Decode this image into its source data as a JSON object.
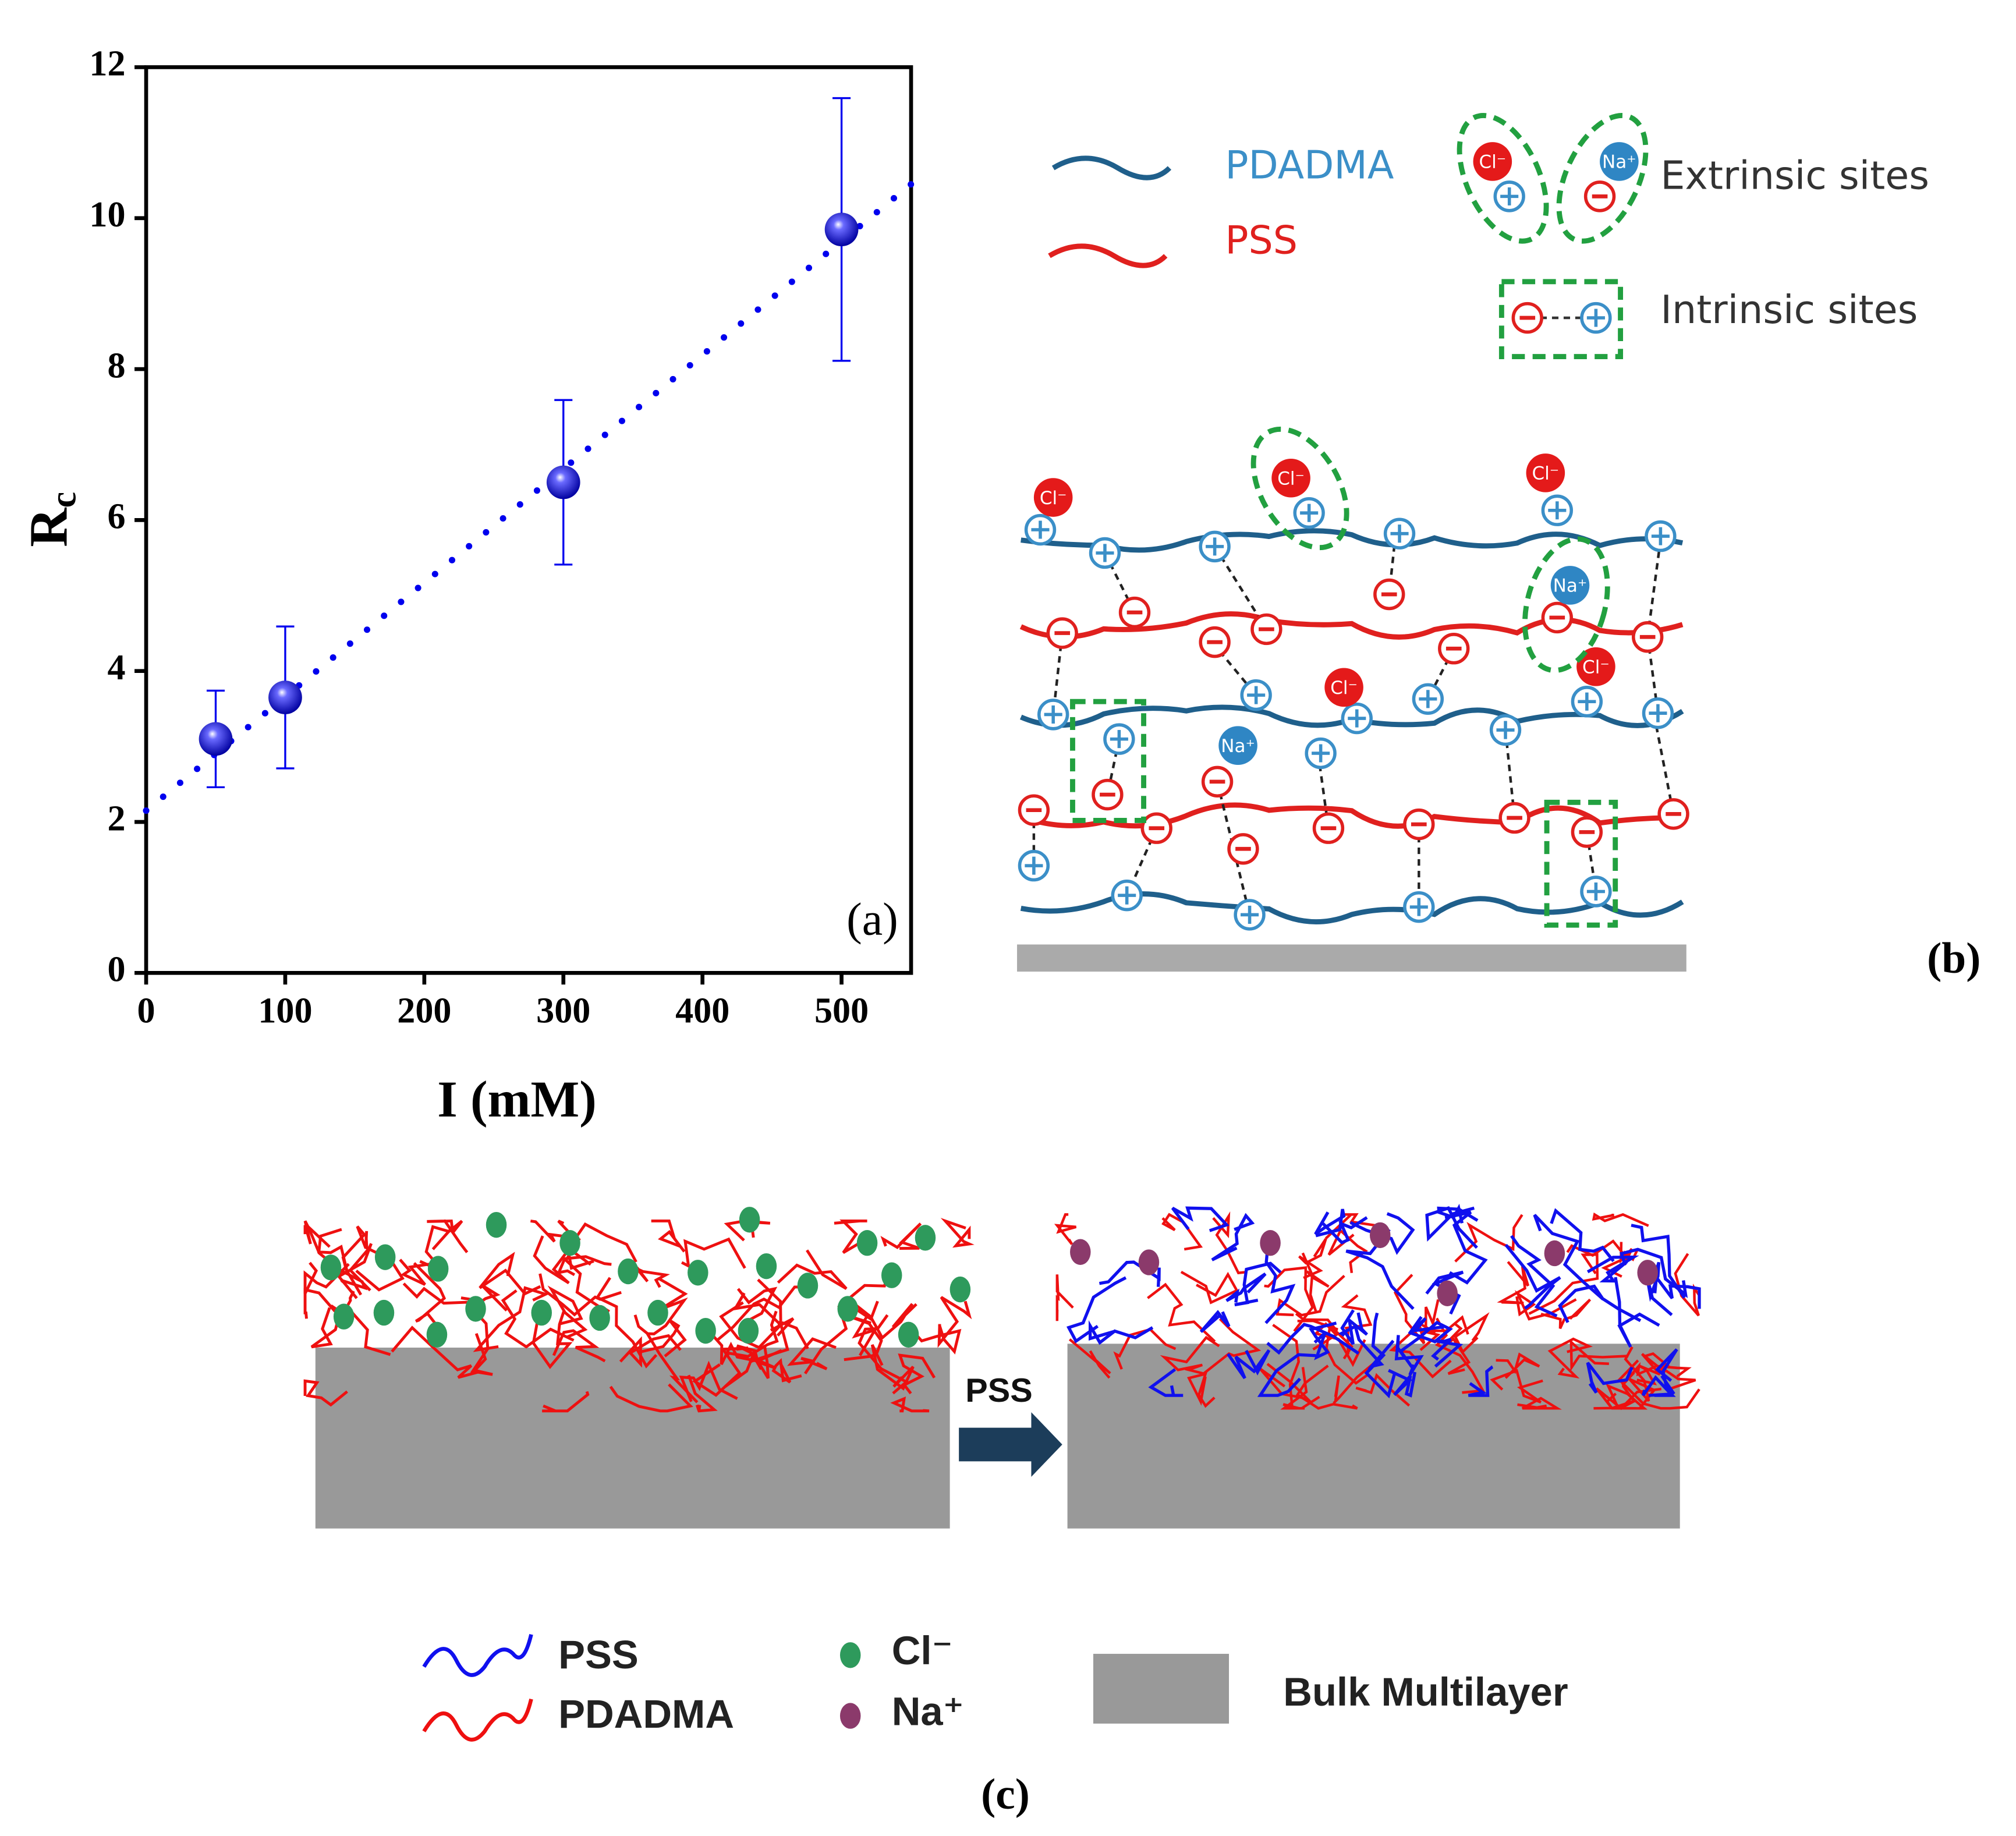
{
  "chart_data": {
    "type": "scatter",
    "xlabel": "I (mM)",
    "ylabel": "R",
    "ylabel_sub": "c",
    "panel_label": "(a)",
    "x": [
      50,
      100,
      300,
      500
    ],
    "series": [
      {
        "color": "#0000ee",
        "values": [
          3.1,
          3.65,
          6.5,
          9.85
        ],
        "errors": [
          0.64,
          0.94,
          1.09,
          1.74
        ]
      }
    ],
    "trendline": {
      "x": [
        0,
        550
      ],
      "values": [
        2.15,
        10.45
      ],
      "color": "#0000ee",
      "style": "dotted"
    },
    "xlim": [
      0,
      550
    ],
    "ylim": [
      0,
      12
    ],
    "xticks": [
      0,
      100,
      200,
      300,
      400,
      500
    ],
    "yticks": [
      0,
      2,
      4,
      6,
      8,
      10,
      12
    ]
  },
  "diagram_b": {
    "panel_label": "(b)",
    "legend": {
      "pdadma": "PDADMA",
      "pss": "PSS",
      "extrinsic": "Extrinsic sites",
      "intrinsic": "Intrinsic sites"
    },
    "ions": {
      "cl": "Cl⁻",
      "na": "Na⁺"
    }
  },
  "diagram_c": {
    "panel_label": "(c)",
    "arrow_label": "PSS",
    "legend": {
      "pss": "PSS",
      "pdadma": "PDADMA",
      "cl": "Cl⁻",
      "na": "Na⁺",
      "bulk": "Bulk Multilayer"
    }
  }
}
